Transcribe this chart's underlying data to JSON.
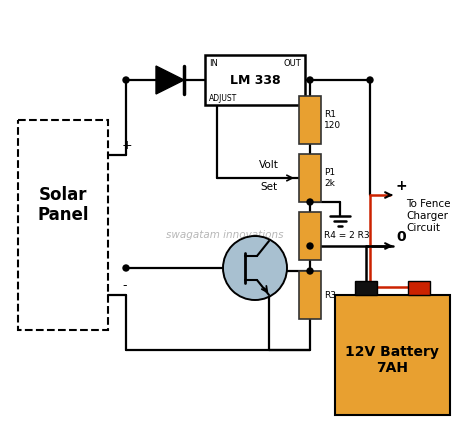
{
  "bg_color": "#ffffff",
  "resistor_color": "#E8A030",
  "battery_color": "#E8A030",
  "transistor_color": "#A8C0D0",
  "red_wire": "#CC2200",
  "watermark": "swagatam innovations",
  "labels": {
    "lm338": "LM 338",
    "IN": "IN",
    "OUT": "OUT",
    "ADJUST": "ADJUST",
    "Solar_Panel": "Solar\nPanel",
    "Volt_Set_1": "Volt",
    "Volt_Set_2": "Set",
    "R1": "R1\n120",
    "P1": "P1\n2k",
    "R4": "R4 = 2 R3",
    "R3": "R3",
    "Battery": "12V Battery\n7AH",
    "To_Fence": "To Fence\nCharger\nCircuit",
    "plus": "+",
    "zero": "0"
  }
}
